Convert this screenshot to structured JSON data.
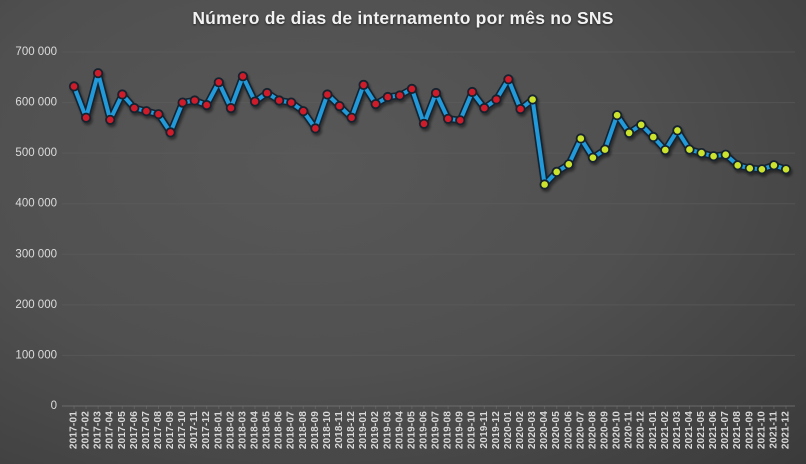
{
  "title": "Número de dias de internamento por mês no SNS",
  "chart_data": {
    "type": "line",
    "title": "Número de dias de internamento por mês no SNS",
    "xlabel": "",
    "ylabel": "",
    "ylim": [
      0,
      700000
    ],
    "ytick_step": 100000,
    "ytick_labels": [
      "0",
      "100 000",
      "200 000",
      "300 000",
      "400 000",
      "500 000",
      "600 000",
      "700 000"
    ],
    "grid": true,
    "legend_position": "none",
    "x": [
      "2017-01",
      "2017-02",
      "2017-03",
      "2017-04",
      "2017-05",
      "2017-06",
      "2017-07",
      "2017-08",
      "2017-09",
      "2017-10",
      "2017-11",
      "2017-12",
      "2018-01",
      "2018-02",
      "2018-03",
      "2018-04",
      "2018-05",
      "2018-06",
      "2018-07",
      "2018-08",
      "2018-09",
      "2018-10",
      "2018-11",
      "2018-12",
      "2019-01",
      "2019-02",
      "2019-03",
      "2019-04",
      "2019-05",
      "2019-06",
      "2019-07",
      "2019-08",
      "2019-09",
      "2019-10",
      "2019-11",
      "2019-12",
      "2020-01",
      "2020-02",
      "2020-03",
      "2020-04",
      "2020-05",
      "2020-06",
      "2020-07",
      "2020-08",
      "2020-09",
      "2020-10",
      "2020-11",
      "2020-12",
      "2021-01",
      "2021-02",
      "2021-03",
      "2021-04",
      "2021-05",
      "2021-06",
      "2021-07",
      "2021-08",
      "2021-09",
      "2021-10",
      "2021-11",
      "2021-12"
    ],
    "series": [
      {
        "name": "Dias de internamento",
        "values": [
          632000,
          570000,
          658000,
          566000,
          616000,
          589000,
          583000,
          577000,
          541000,
          600000,
          604000,
          595000,
          640000,
          589000,
          652000,
          602000,
          619000,
          604000,
          600000,
          583000,
          549000,
          616000,
          593000,
          570000,
          635000,
          597000,
          611000,
          614000,
          627000,
          558000,
          619000,
          568000,
          565000,
          621000,
          589000,
          606000,
          646000,
          587000,
          606000,
          438000,
          463000,
          478000,
          529000,
          491000,
          507000,
          575000,
          540000,
          556000,
          532000,
          506000,
          545000,
          507000,
          500000,
          494000,
          497000,
          476000,
          470000,
          468000,
          476000,
          468000
        ]
      }
    ],
    "marker_color_change_at": "2020-03",
    "styles": {
      "line_color": "#2299d8",
      "line_outline_color": "#16222e",
      "marker_color_early": "#ce1e2a",
      "marker_color_late": "#cce32f",
      "gridline_color": "#5f5f5f",
      "axis_line_color": "#757575",
      "title_color": "#f2f2f2",
      "tick_label_color": "#dcdcdc"
    }
  }
}
